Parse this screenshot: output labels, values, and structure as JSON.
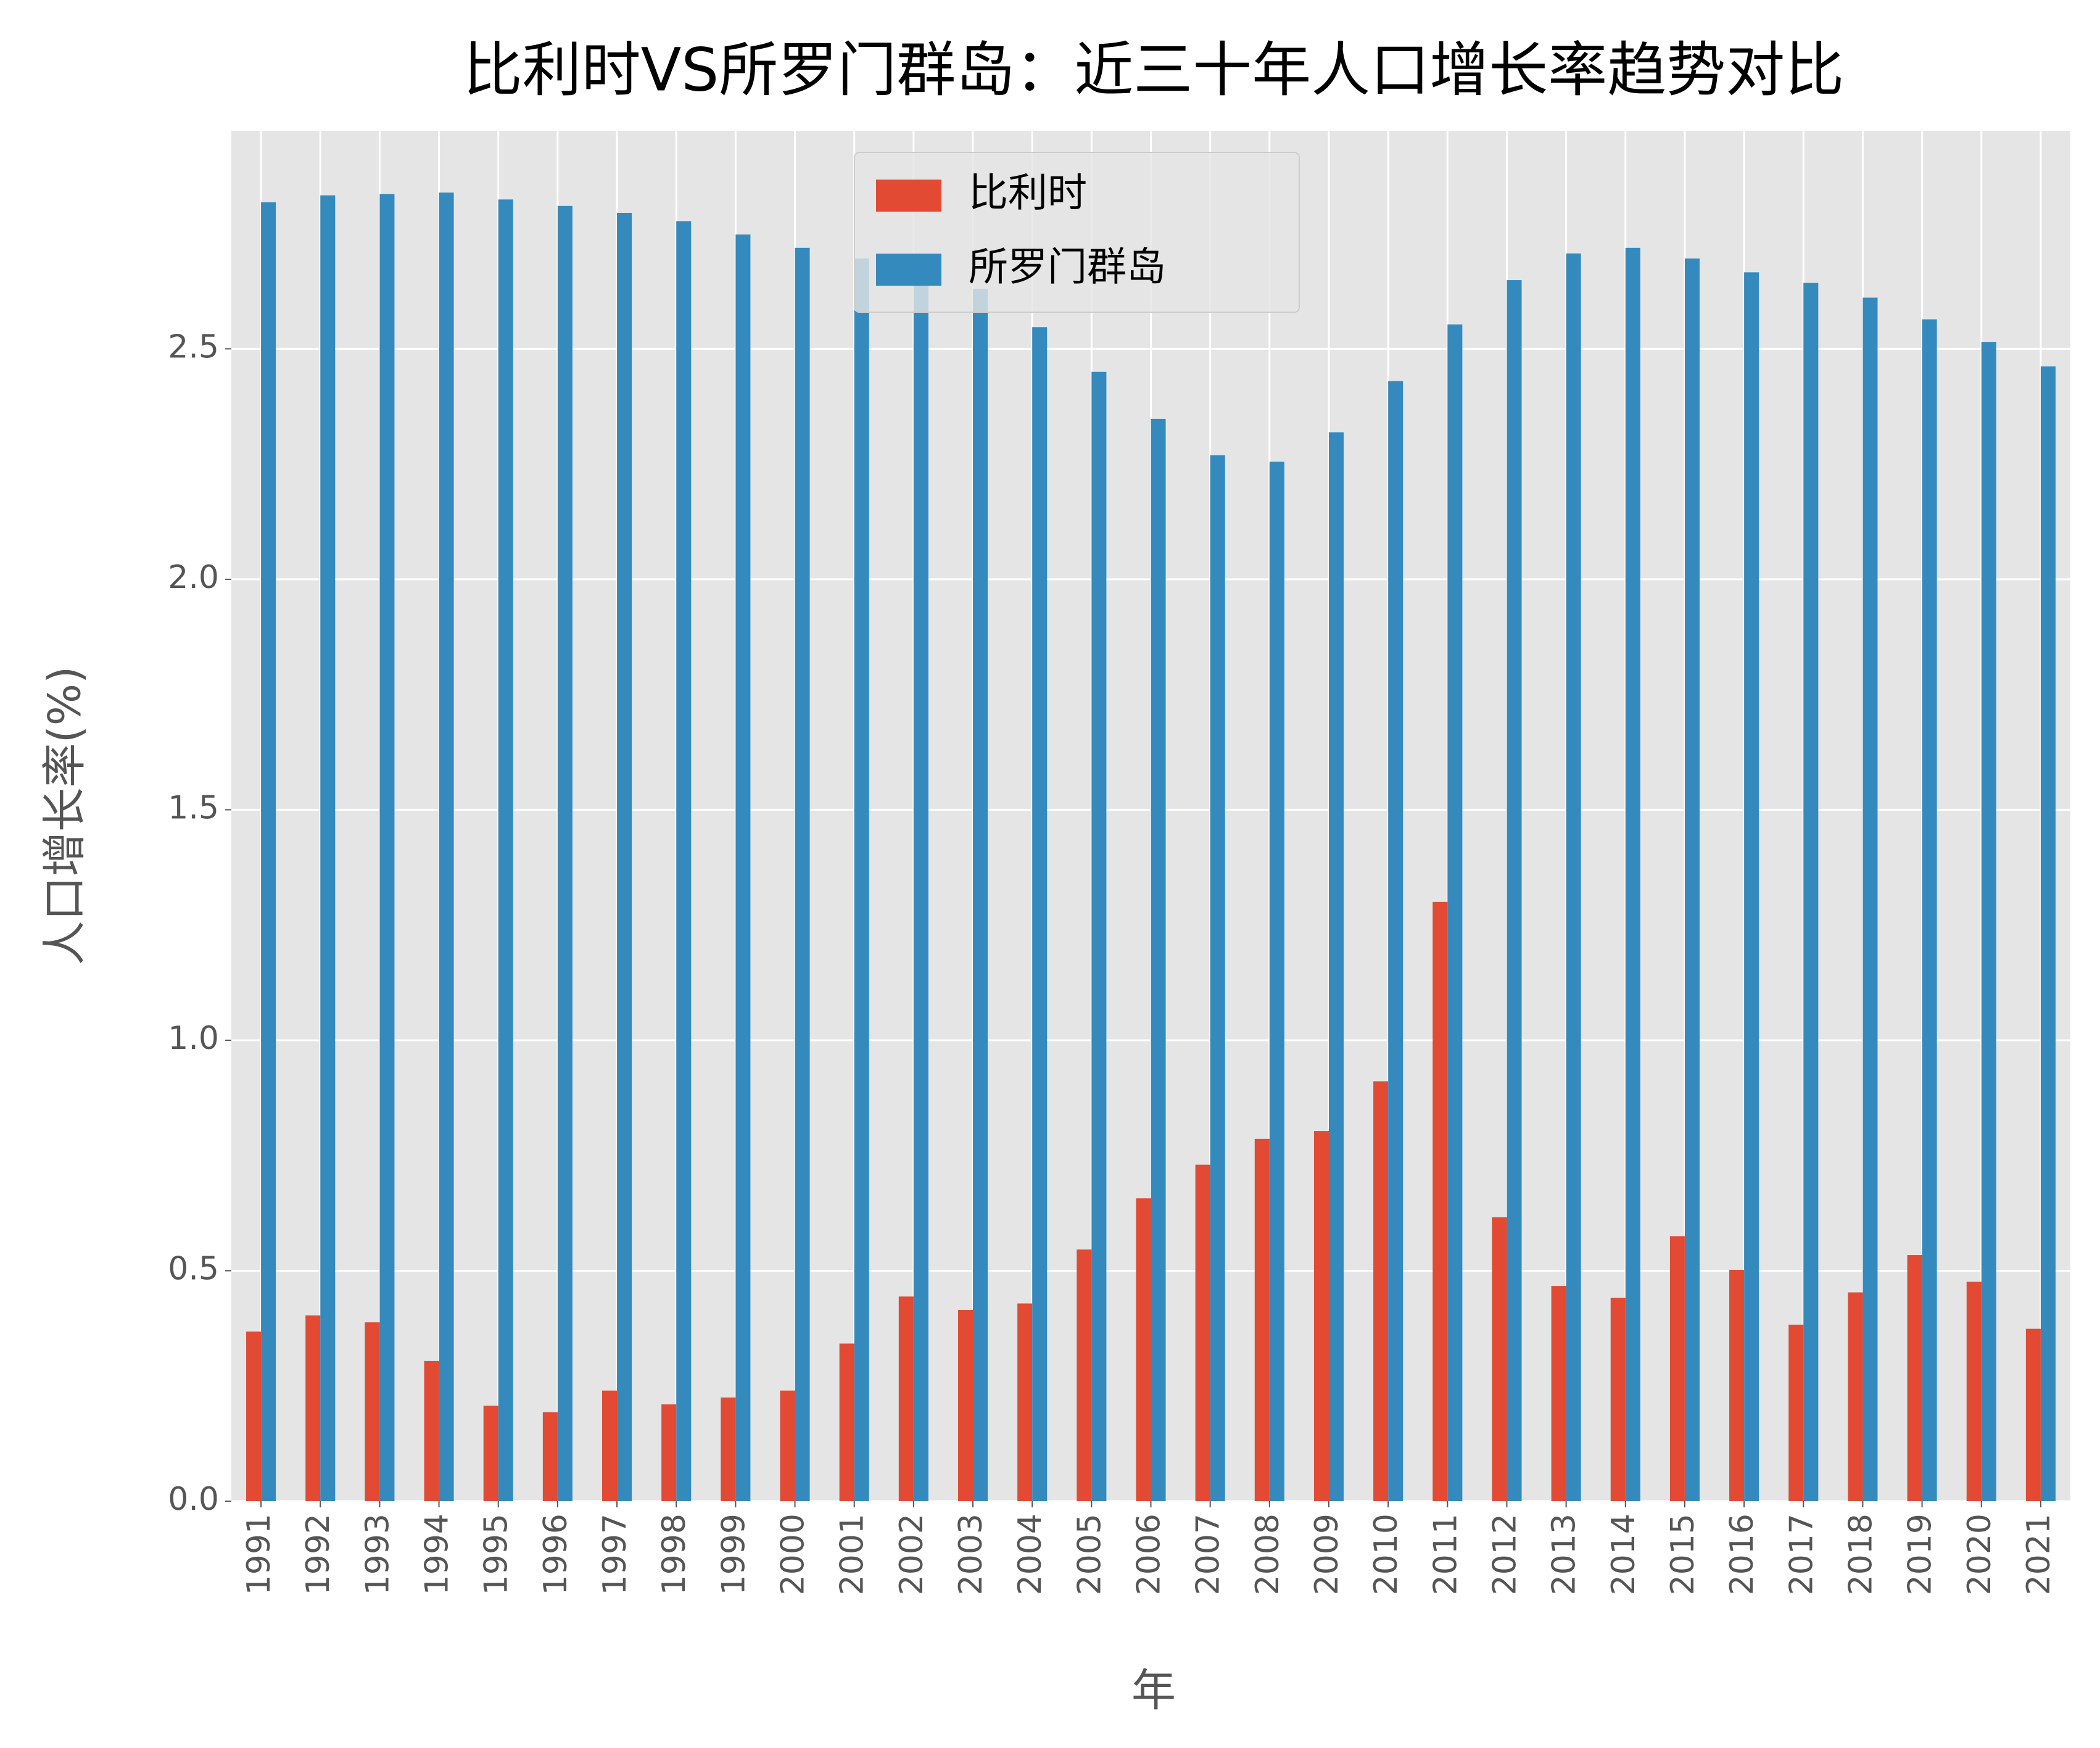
{
  "chart_data": {
    "type": "bar",
    "title": "比利时VS所罗门群岛：近三十年人口增长率趋势对比",
    "x_label": "年",
    "y_label": "人口增长率(%)",
    "categories": [
      "1991",
      "1992",
      "1993",
      "1994",
      "1995",
      "1996",
      "1997",
      "1998",
      "1999",
      "2000",
      "2001",
      "2002",
      "2003",
      "2004",
      "2005",
      "2006",
      "2007",
      "2008",
      "2009",
      "2010",
      "2011",
      "2012",
      "2013",
      "2014",
      "2015",
      "2016",
      "2017",
      "2018",
      "2019",
      "2020",
      "2021"
    ],
    "series": [
      {
        "name": "比利时",
        "color": "#E24A33",
        "values": [
          0.368,
          0.403,
          0.388,
          0.304,
          0.207,
          0.193,
          0.24,
          0.21,
          0.225,
          0.24,
          0.342,
          0.444,
          0.415,
          0.429,
          0.546,
          0.657,
          0.73,
          0.786,
          0.803,
          0.911,
          1.3,
          0.616,
          0.467,
          0.441,
          0.575,
          0.502,
          0.383,
          0.453,
          0.534,
          0.476,
          0.374
        ]
      },
      {
        "name": "所罗门群岛",
        "color": "#348ABD",
        "values": [
          2.818,
          2.833,
          2.836,
          2.839,
          2.824,
          2.81,
          2.795,
          2.777,
          2.748,
          2.719,
          2.696,
          2.672,
          2.63,
          2.547,
          2.45,
          2.348,
          2.269,
          2.255,
          2.319,
          2.43,
          2.553,
          2.649,
          2.707,
          2.719,
          2.696,
          2.666,
          2.643,
          2.611,
          2.564,
          2.515,
          2.462
        ]
      }
    ],
    "ylim": [
      0,
      2.973
    ],
    "yticks": [
      {
        "value": 0,
        "label": "0.0"
      },
      0.5,
      {
        "value": 1,
        "label": "1.0"
      },
      1.5,
      {
        "value": 2,
        "label": "2.0"
      },
      2.5
    ],
    "grid": true,
    "legend": "upper center"
  }
}
